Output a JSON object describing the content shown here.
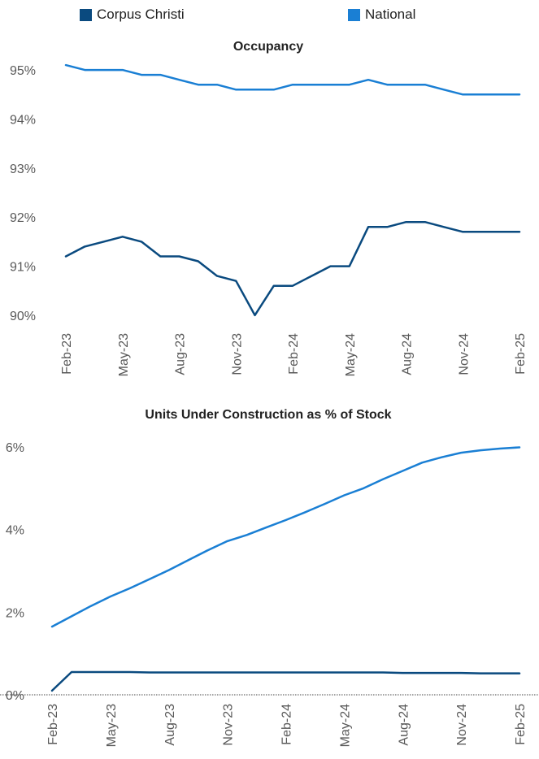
{
  "legend": [
    {
      "label": "Corpus Christi",
      "color": "#0a4a7f"
    },
    {
      "label": "National",
      "color": "#1a7fd4"
    }
  ],
  "chart_data": [
    {
      "type": "line",
      "title": "Occupancy",
      "xlabel": "",
      "ylabel": "",
      "x_ticks": [
        "Feb-23",
        "May-23",
        "Aug-23",
        "Nov-23",
        "Feb-24",
        "May-24",
        "Aug-24",
        "Nov-24",
        "Feb-25"
      ],
      "y_ticks": [
        "90%",
        "91%",
        "92%",
        "93%",
        "94%",
        "95%"
      ],
      "ylim": [
        89.8,
        95.3
      ],
      "grid": false,
      "legend_position": "top",
      "x": [
        "Feb-23",
        "Mar-23",
        "Apr-23",
        "May-23",
        "Jun-23",
        "Jul-23",
        "Aug-23",
        "Sep-23",
        "Oct-23",
        "Nov-23",
        "Dec-23",
        "Jan-24",
        "Feb-24",
        "Mar-24",
        "Apr-24",
        "May-24",
        "Jun-24",
        "Jul-24",
        "Aug-24",
        "Sep-24",
        "Oct-24",
        "Nov-24",
        "Dec-24",
        "Jan-25",
        "Feb-25"
      ],
      "series": [
        {
          "name": "National",
          "color": "#1a7fd4",
          "values": [
            95.1,
            95.0,
            95.0,
            95.0,
            94.9,
            94.9,
            94.8,
            94.7,
            94.7,
            94.6,
            94.6,
            94.6,
            94.7,
            94.7,
            94.7,
            94.7,
            94.8,
            94.7,
            94.7,
            94.7,
            94.6,
            94.5,
            94.5,
            94.5,
            94.5
          ]
        },
        {
          "name": "Corpus Christi",
          "color": "#0a4a7f",
          "values": [
            91.2,
            91.4,
            91.5,
            91.6,
            91.5,
            91.2,
            91.2,
            91.1,
            90.8,
            90.7,
            90.0,
            90.6,
            90.6,
            90.8,
            91.0,
            91.0,
            91.8,
            91.8,
            91.9,
            91.9,
            91.8,
            91.7,
            91.7,
            91.7,
            91.7
          ]
        }
      ]
    },
    {
      "type": "line",
      "title": "Units Under Construction as % of Stock",
      "xlabel": "",
      "ylabel": "",
      "x_ticks": [
        "Feb-23",
        "May-23",
        "Aug-23",
        "Nov-23",
        "Feb-24",
        "May-24",
        "Aug-24",
        "Nov-24",
        "Feb-25"
      ],
      "y_ticks": [
        "0%",
        "2%",
        "4%",
        "6%"
      ],
      "ylim": [
        0,
        6
      ],
      "grid": false,
      "legend_position": "top",
      "x": [
        "Feb-23",
        "Mar-23",
        "Apr-23",
        "May-23",
        "Jun-23",
        "Jul-23",
        "Aug-23",
        "Sep-23",
        "Oct-23",
        "Nov-23",
        "Dec-23",
        "Jan-24",
        "Feb-24",
        "Mar-24",
        "Apr-24",
        "May-24",
        "Jun-24",
        "Jul-24",
        "Aug-24",
        "Sep-24",
        "Oct-24",
        "Nov-24",
        "Dec-24",
        "Jan-25",
        "Feb-25"
      ],
      "series": [
        {
          "name": "National",
          "color": "#1a7fd4",
          "values": [
            1.65,
            1.9,
            2.15,
            2.38,
            2.58,
            2.8,
            3.02,
            3.26,
            3.5,
            3.72,
            3.87,
            4.05,
            4.23,
            4.42,
            4.62,
            4.83,
            5.0,
            5.22,
            5.42,
            5.62,
            5.75,
            5.86,
            5.92,
            5.96,
            5.99
          ]
        },
        {
          "name": "Corpus Christi",
          "color": "#0a4a7f",
          "values": [
            0.1,
            0.55,
            0.55,
            0.55,
            0.55,
            0.54,
            0.54,
            0.54,
            0.54,
            0.54,
            0.54,
            0.54,
            0.54,
            0.54,
            0.54,
            0.54,
            0.54,
            0.54,
            0.53,
            0.53,
            0.53,
            0.53,
            0.52,
            0.52,
            0.52
          ]
        }
      ]
    }
  ]
}
